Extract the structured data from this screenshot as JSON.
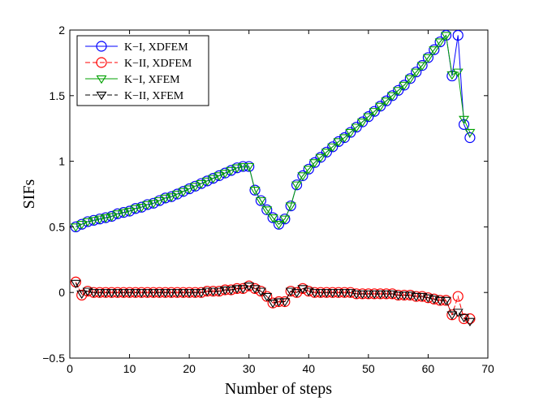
{
  "chart_data": {
    "type": "line",
    "title": "",
    "xlabel": "Number of steps",
    "ylabel": "SIFs",
    "xlim": [
      0,
      70
    ],
    "ylim": [
      -0.5,
      2
    ],
    "xticks": [
      0,
      10,
      20,
      30,
      40,
      50,
      60,
      70
    ],
    "yticks": [
      -0.5,
      0,
      0.5,
      1,
      1.5,
      2
    ],
    "ytick_labels": [
      "−0.5",
      "0",
      "0.5",
      "1",
      "1.5",
      "2"
    ],
    "grid": false,
    "legend_position": "top-left",
    "x": [
      1,
      2,
      3,
      4,
      5,
      6,
      7,
      8,
      9,
      10,
      11,
      12,
      13,
      14,
      15,
      16,
      17,
      18,
      19,
      20,
      21,
      22,
      23,
      24,
      25,
      26,
      27,
      28,
      29,
      30,
      31,
      32,
      33,
      34,
      35,
      36,
      37,
      38,
      39,
      40,
      41,
      42,
      43,
      44,
      45,
      46,
      47,
      48,
      49,
      50,
      51,
      52,
      53,
      54,
      55,
      56,
      57,
      58,
      59,
      60,
      61,
      62,
      63,
      64,
      65,
      66,
      67
    ],
    "series": [
      {
        "name": "K−I, XDFEM",
        "color": "#0000ff",
        "line": "solid",
        "marker": "circle",
        "values": [
          0.5,
          0.52,
          0.54,
          0.55,
          0.56,
          0.57,
          0.58,
          0.6,
          0.61,
          0.62,
          0.64,
          0.65,
          0.67,
          0.68,
          0.7,
          0.72,
          0.73,
          0.75,
          0.77,
          0.79,
          0.81,
          0.83,
          0.85,
          0.87,
          0.89,
          0.91,
          0.93,
          0.95,
          0.96,
          0.96,
          0.78,
          0.7,
          0.63,
          0.57,
          0.52,
          0.56,
          0.66,
          0.82,
          0.89,
          0.94,
          0.99,
          1.03,
          1.07,
          1.11,
          1.15,
          1.18,
          1.22,
          1.26,
          1.3,
          1.34,
          1.38,
          1.42,
          1.46,
          1.5,
          1.54,
          1.58,
          1.63,
          1.68,
          1.73,
          1.79,
          1.85,
          1.91,
          1.96,
          1.65,
          1.96,
          1.28,
          1.18
        ]
      },
      {
        "name": "K−II, XDFEM",
        "color": "#ff0000",
        "line": "dashed",
        "marker": "circle",
        "values": [
          0.08,
          -0.02,
          0.01,
          0.0,
          0.0,
          0.0,
          0.0,
          0.0,
          0.0,
          0.0,
          0.0,
          0.0,
          0.0,
          0.0,
          0.0,
          0.0,
          0.0,
          0.0,
          0.0,
          0.0,
          0.0,
          0.0,
          0.01,
          0.01,
          0.01,
          0.02,
          0.02,
          0.03,
          0.03,
          0.05,
          0.03,
          0.01,
          -0.03,
          -0.08,
          -0.07,
          -0.07,
          0.01,
          0.0,
          0.03,
          0.01,
          0.0,
          0.0,
          0.0,
          0.0,
          0.0,
          0.0,
          0.0,
          -0.01,
          -0.01,
          -0.01,
          -0.01,
          -0.01,
          -0.01,
          -0.01,
          -0.02,
          -0.02,
          -0.02,
          -0.03,
          -0.03,
          -0.04,
          -0.05,
          -0.06,
          -0.06,
          -0.17,
          -0.03,
          -0.2,
          -0.2
        ]
      },
      {
        "name": "K−I, XFEM",
        "color": "#00a000",
        "line": "solid",
        "marker": "triangle-down",
        "values": [
          0.5,
          0.52,
          0.54,
          0.55,
          0.56,
          0.57,
          0.58,
          0.6,
          0.61,
          0.62,
          0.64,
          0.65,
          0.67,
          0.68,
          0.7,
          0.72,
          0.73,
          0.75,
          0.77,
          0.79,
          0.81,
          0.83,
          0.85,
          0.87,
          0.89,
          0.91,
          0.93,
          0.95,
          0.96,
          0.96,
          0.78,
          0.7,
          0.63,
          0.57,
          0.52,
          0.56,
          0.66,
          0.82,
          0.89,
          0.94,
          0.99,
          1.03,
          1.07,
          1.11,
          1.15,
          1.18,
          1.22,
          1.26,
          1.3,
          1.34,
          1.38,
          1.42,
          1.46,
          1.5,
          1.54,
          1.58,
          1.63,
          1.68,
          1.73,
          1.79,
          1.85,
          1.91,
          1.96,
          1.66,
          1.68,
          1.32,
          1.22
        ]
      },
      {
        "name": "K−II, XFEM",
        "color": "#000000",
        "line": "dashed",
        "marker": "triangle-down",
        "values": [
          0.07,
          -0.01,
          0.01,
          0.0,
          0.0,
          0.0,
          0.0,
          0.0,
          0.0,
          0.0,
          0.0,
          0.0,
          0.0,
          0.0,
          0.0,
          0.0,
          0.0,
          0.0,
          0.0,
          0.0,
          0.0,
          0.0,
          0.01,
          0.01,
          0.01,
          0.02,
          0.02,
          0.03,
          0.03,
          0.05,
          0.03,
          0.01,
          -0.03,
          -0.08,
          -0.07,
          -0.07,
          0.01,
          0.0,
          0.03,
          0.01,
          0.0,
          0.0,
          0.0,
          0.0,
          0.0,
          0.0,
          0.0,
          -0.01,
          -0.01,
          -0.01,
          -0.01,
          -0.01,
          -0.01,
          -0.01,
          -0.02,
          -0.02,
          -0.02,
          -0.03,
          -0.03,
          -0.04,
          -0.05,
          -0.06,
          -0.06,
          -0.17,
          -0.15,
          -0.19,
          -0.22
        ]
      }
    ]
  }
}
